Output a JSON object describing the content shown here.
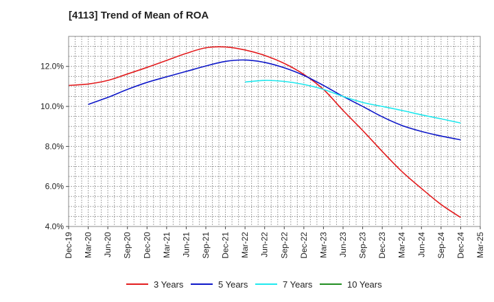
{
  "chart_data": {
    "type": "line",
    "title": "[4113]  Trend of Mean of ROA",
    "xlabel": "",
    "ylabel": "",
    "grid": true,
    "legend_position": "bottom",
    "ylim": [
      4.0,
      13.5
    ],
    "yticks": [
      4.0,
      6.0,
      8.0,
      10.0,
      12.0
    ],
    "ytick_labels": [
      "4.0%",
      "6.0%",
      "8.0%",
      "10.0%",
      "12.0%"
    ],
    "categories": [
      "Dec-19",
      "Mar-20",
      "Jun-20",
      "Sep-20",
      "Dec-20",
      "Mar-21",
      "Jun-21",
      "Sep-21",
      "Dec-21",
      "Mar-22",
      "Jun-22",
      "Sep-22",
      "Dec-22",
      "Mar-23",
      "Jun-23",
      "Sep-23",
      "Dec-23",
      "Mar-24",
      "Jun-24",
      "Sep-24",
      "Dec-24",
      "Mar-25"
    ],
    "series": [
      {
        "name": "3 Years",
        "color": "#e31a1c",
        "values": [
          11.05,
          11.12,
          11.3,
          11.62,
          11.95,
          12.3,
          12.65,
          12.93,
          12.97,
          12.82,
          12.55,
          12.15,
          11.6,
          10.85,
          9.8,
          8.8,
          7.75,
          6.75,
          5.9,
          5.1,
          4.45,
          null
        ]
      },
      {
        "name": "5 Years",
        "color": "#0a14c8",
        "values": [
          null,
          10.1,
          10.45,
          10.85,
          11.2,
          11.48,
          11.75,
          12.02,
          12.25,
          12.32,
          12.2,
          11.93,
          11.55,
          11.05,
          10.5,
          10.0,
          9.48,
          9.05,
          8.75,
          8.52,
          8.33,
          null
        ]
      },
      {
        "name": "7 Years",
        "color": "#1de8ee",
        "values": [
          null,
          null,
          null,
          null,
          null,
          null,
          null,
          null,
          null,
          11.22,
          11.3,
          11.25,
          11.1,
          10.85,
          10.5,
          10.2,
          10.0,
          9.8,
          9.58,
          9.38,
          9.17,
          null
        ]
      },
      {
        "name": "10 Years",
        "color": "#1e8c1e",
        "values": [
          null,
          null,
          null,
          null,
          null,
          null,
          null,
          null,
          null,
          null,
          null,
          null,
          null,
          null,
          null,
          null,
          null,
          null,
          null,
          null,
          null,
          null
        ]
      }
    ]
  }
}
